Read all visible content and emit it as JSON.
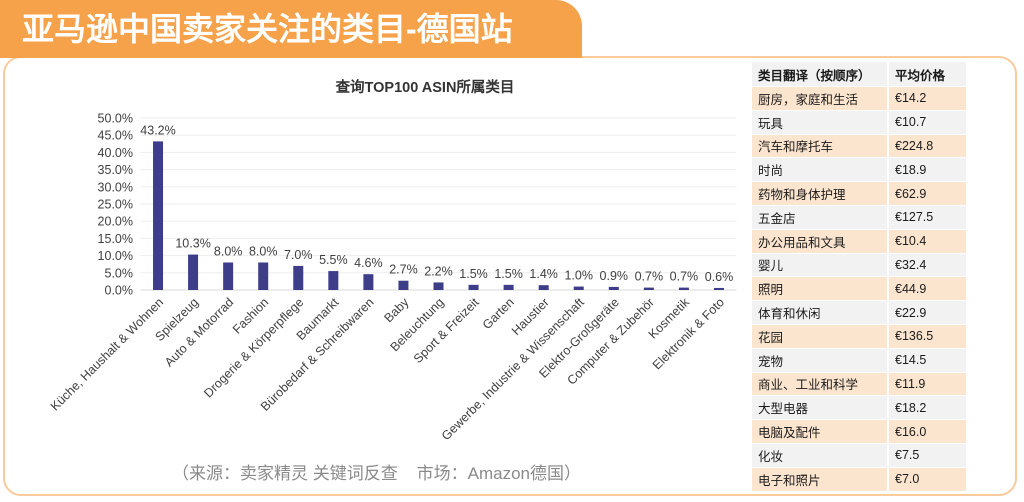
{
  "banner": {
    "title": "亚马逊中国卖家关注的类目-德国站"
  },
  "colors": {
    "banner": "#F5A24A",
    "frame": "#F9CA9C",
    "bar": "#3E3D8A",
    "row_odd": "#FCE5CF",
    "row_even": "#F2F2F2",
    "header_bg": "#F2F2F2"
  },
  "chart_data": [
    {
      "type": "bar",
      "title": "查询TOP100 ASIN所属类目",
      "categories": [
        "Küche, Haushalt & Wohnen",
        "Spielzeug",
        "Auto & Motorrad",
        "Fashion",
        "Drogerie & Körperpflege",
        "Baumarkt",
        "Bürobedarf & Schreibwaren",
        "Baby",
        "Beleuchtung",
        "Sport & Freizeit",
        "Garten",
        "Haustier",
        "Gewerbe, Industrie & Wissenschaft",
        "Elektro-Großgeräte",
        "Computer & Zubehör",
        "Kosmetik",
        "Elektronik & Foto"
      ],
      "values": [
        43.2,
        10.3,
        8.0,
        8.0,
        7.0,
        5.5,
        4.6,
        2.7,
        2.2,
        1.5,
        1.5,
        1.4,
        1.0,
        0.9,
        0.7,
        0.7,
        0.6
      ],
      "value_labels": [
        "43.2%",
        "10.3%",
        "8.0%",
        "8.0%",
        "7.0%",
        "5.5%",
        "4.6%",
        "2.7%",
        "2.2%",
        "1.5%",
        "1.5%",
        "1.4%",
        "1.0%",
        "0.9%",
        "0.7%",
        "0.7%",
        "0.6%"
      ],
      "ylim": [
        0,
        50
      ],
      "yticks": [
        0,
        5,
        10,
        15,
        20,
        25,
        30,
        35,
        40,
        45,
        50
      ],
      "ytick_labels": [
        "0.0%",
        "5.0%",
        "10.0%",
        "15.0%",
        "20.0%",
        "25.0%",
        "30.0%",
        "35.0%",
        "40.0%",
        "45.0%",
        "50.0%"
      ],
      "grid": true
    },
    {
      "type": "table",
      "columns": [
        "类目翻译（按顺序）",
        "平均价格"
      ],
      "rows": [
        [
          "厨房，家庭和生活",
          "€14.2"
        ],
        [
          "玩具",
          "€10.7"
        ],
        [
          "汽车和摩托车",
          "€224.8"
        ],
        [
          "时尚",
          "€18.9"
        ],
        [
          "药物和身体护理",
          "€62.9"
        ],
        [
          "五金店",
          "€127.5"
        ],
        [
          "办公用品和文具",
          "€10.4"
        ],
        [
          "婴儿",
          "€32.4"
        ],
        [
          "照明",
          "€44.9"
        ],
        [
          "体育和休闲",
          "€22.9"
        ],
        [
          "花园",
          "€136.5"
        ],
        [
          "宠物",
          "€14.5"
        ],
        [
          "商业、工业和科学",
          "€11.9"
        ],
        [
          "大型电器",
          "€18.2"
        ],
        [
          "电脑及配件",
          "€16.0"
        ],
        [
          "化妆",
          "€7.5"
        ],
        [
          "电子和照片",
          "€7.0"
        ]
      ]
    }
  ],
  "source_note": "（来源：卖家精灵 关键词反查    市场：Amazon德国）"
}
